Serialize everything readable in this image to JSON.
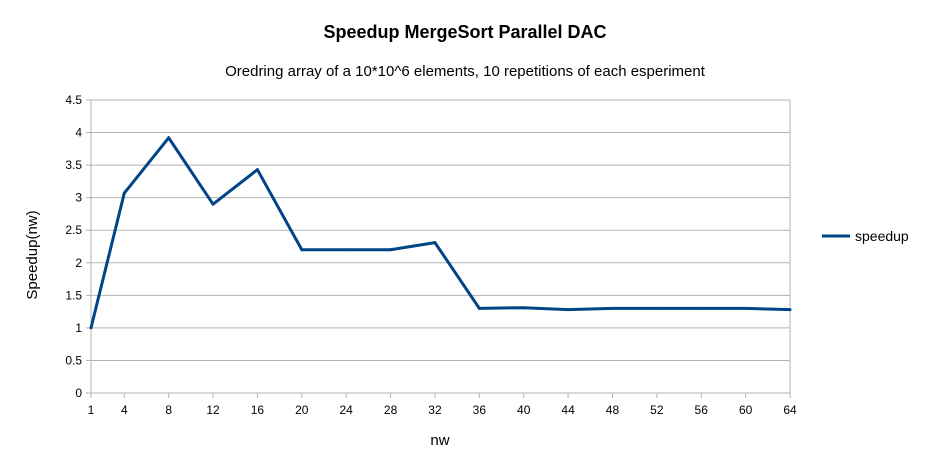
{
  "chart_data": {
    "type": "line",
    "title": "Speedup MergeSort Parallel DAC",
    "subtitle": "Oredring array of a 10*10^6 elements, 10 repetitions of each esperiment",
    "xlabel": "nw",
    "ylabel": "Speedup(nw)",
    "x": [
      1,
      4,
      8,
      12,
      16,
      20,
      24,
      28,
      32,
      36,
      40,
      44,
      48,
      52,
      56,
      60,
      64
    ],
    "x_ticks": [
      "1",
      "4",
      "8",
      "12",
      "16",
      "20",
      "24",
      "28",
      "32",
      "36",
      "40",
      "44",
      "48",
      "52",
      "56",
      "60",
      "64"
    ],
    "y_ticks": [
      "0",
      "0.5",
      "1",
      "1.5",
      "2",
      "2.5",
      "3",
      "3.5",
      "4",
      "4.5"
    ],
    "ylim": [
      0,
      4.5
    ],
    "grid": true,
    "legend_position": "right",
    "series": [
      {
        "name": "speedup",
        "color": "#004586",
        "values": [
          1.0,
          3.07,
          3.92,
          2.9,
          3.43,
          2.2,
          2.2,
          2.2,
          2.31,
          1.3,
          1.31,
          1.28,
          1.3,
          1.3,
          1.3,
          1.3,
          1.28
        ]
      }
    ]
  }
}
